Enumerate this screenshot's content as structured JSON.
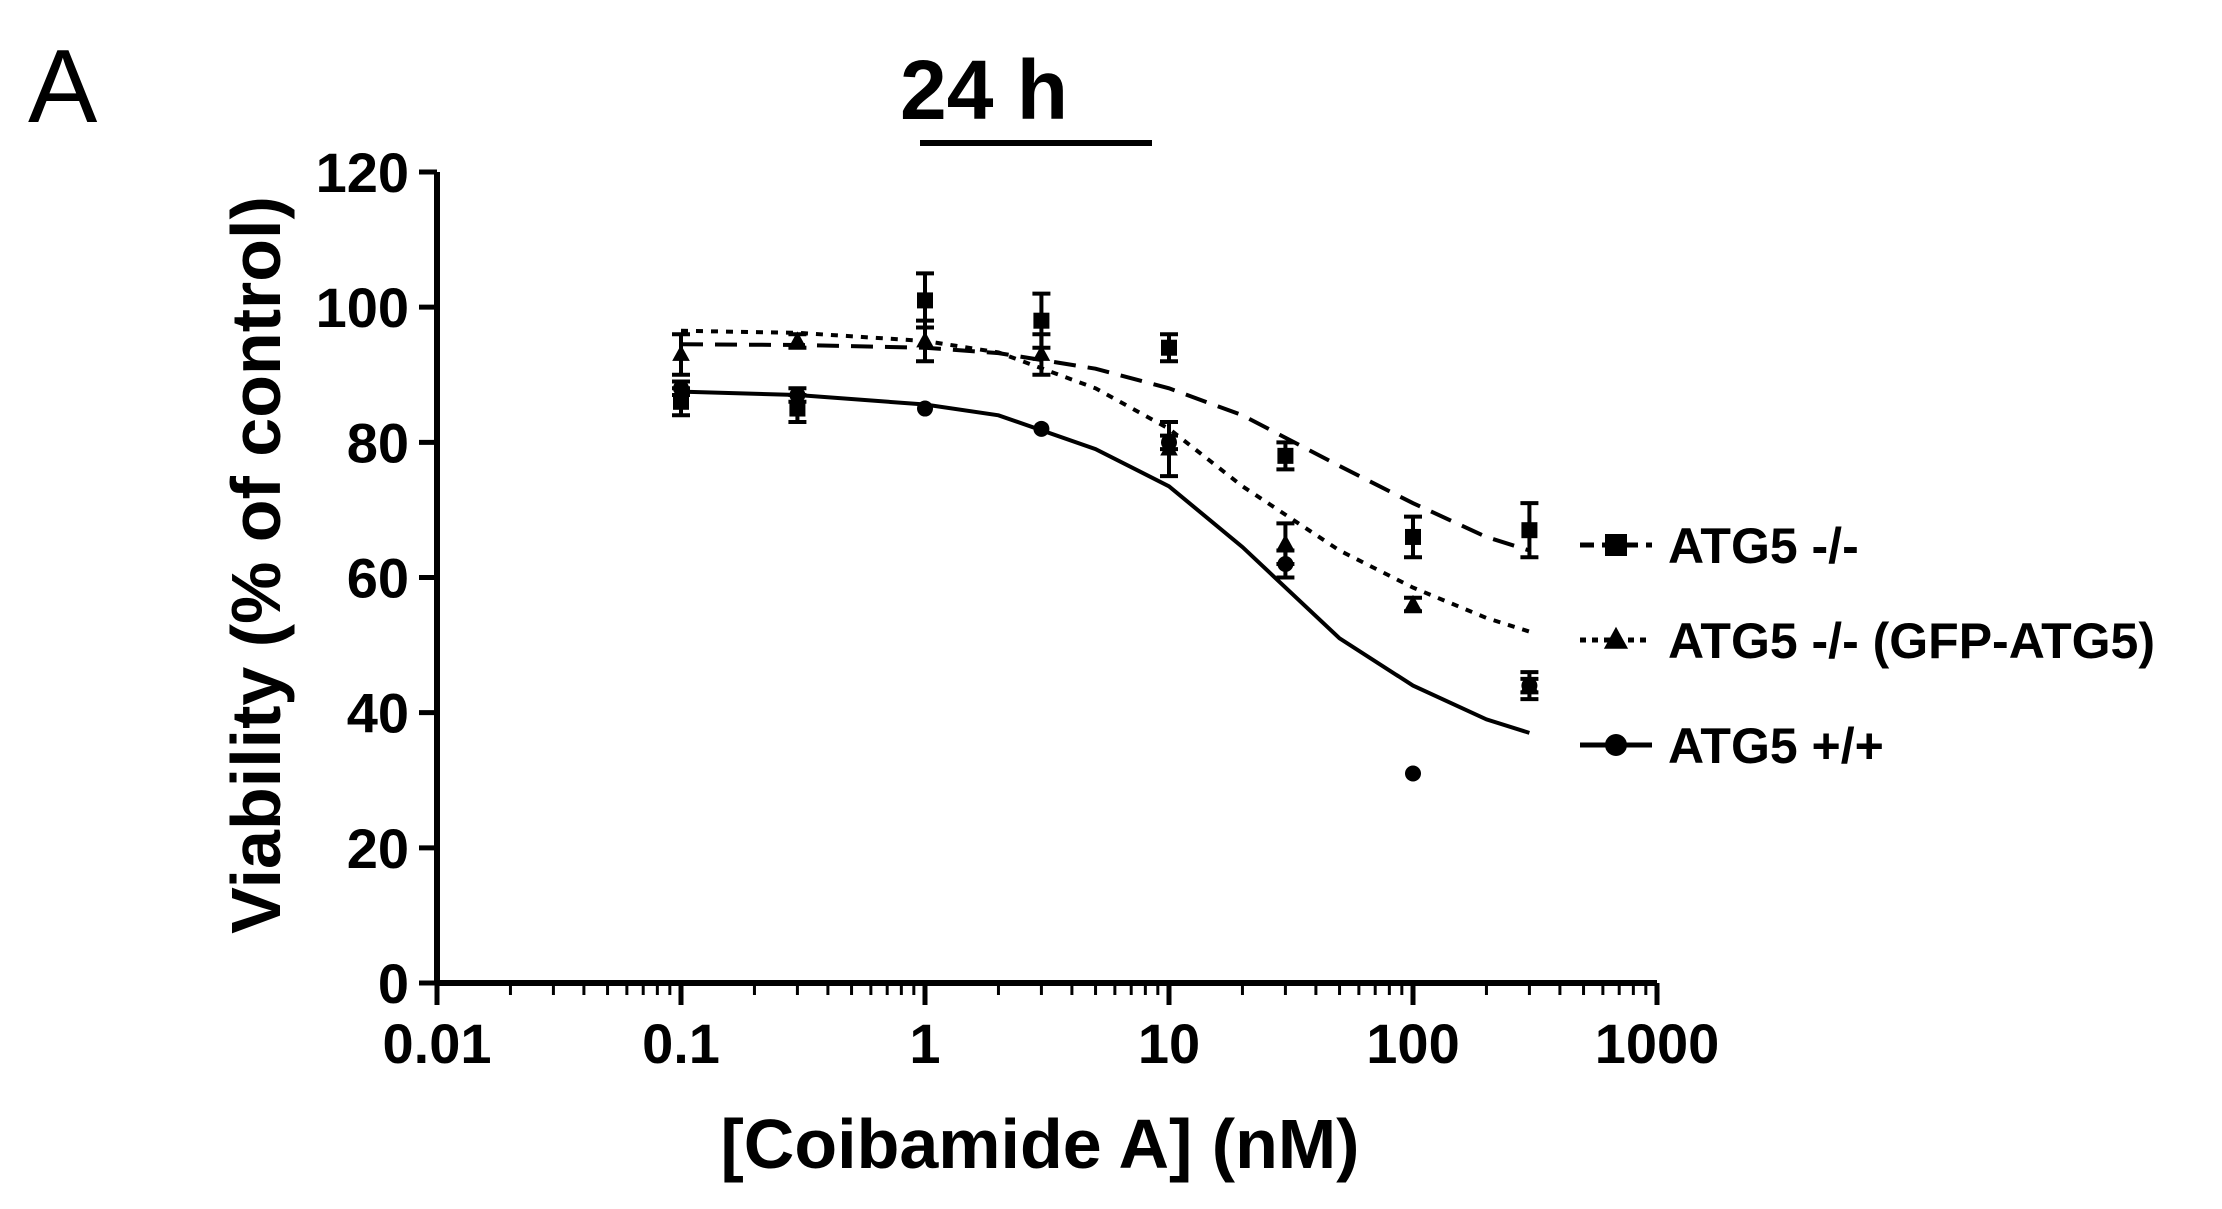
{
  "panel_label": "A",
  "chart_data": {
    "type": "line",
    "title": "24 h",
    "xlabel": "[Coibamide A] (nM)",
    "ylabel": "Viability (% of control)",
    "xscale": "log",
    "xlim": [
      0.01,
      1000
    ],
    "ylim": [
      0,
      120
    ],
    "xticks": [
      0.01,
      0.1,
      1,
      10,
      100,
      1000
    ],
    "xtick_labels": [
      "0.01",
      "0.1",
      "1",
      "10",
      "100",
      "1000"
    ],
    "yticks": [
      0,
      20,
      40,
      60,
      80,
      100,
      120
    ],
    "ytick_labels": [
      "0",
      "20",
      "40",
      "60",
      "80",
      "100",
      "120"
    ],
    "grid": false,
    "legend_position": "right",
    "series": [
      {
        "name": "ATG5 -/-",
        "marker": "square",
        "line_style": "dashed",
        "x": [
          0.1,
          0.3,
          1,
          3,
          10,
          30,
          100,
          300
        ],
        "y": [
          86,
          85,
          101,
          98,
          94,
          78,
          66,
          67
        ],
        "err": [
          2,
          2,
          4,
          4,
          2,
          2,
          3,
          4
        ],
        "fit_x": [
          0.1,
          0.3,
          1,
          2,
          5,
          10,
          20,
          50,
          100,
          200,
          300
        ],
        "fit_y": [
          94.5,
          94.4,
          94.0,
          93.2,
          90.9,
          88.0,
          84.0,
          76.5,
          71.0,
          66.0,
          64.0
        ]
      },
      {
        "name": "ATG5 -/- (GFP-ATG5)",
        "marker": "triangle",
        "line_style": "dotted",
        "x": [
          0.1,
          0.3,
          1,
          3,
          10,
          30,
          100,
          300
        ],
        "y": [
          93,
          95,
          95,
          93,
          79,
          65,
          56,
          44
        ],
        "err": [
          3,
          1,
          3,
          3,
          4,
          3,
          1,
          2
        ],
        "fit_x": [
          0.1,
          0.3,
          1,
          2,
          5,
          10,
          20,
          50,
          100,
          200,
          300
        ],
        "fit_y": [
          96.5,
          96.2,
          95.0,
          93.3,
          88.0,
          82.0,
          73.5,
          64.0,
          58.5,
          54.0,
          52.0
        ]
      },
      {
        "name": "ATG5 +/+",
        "marker": "circle",
        "line_style": "solid",
        "x": [
          0.1,
          0.3,
          1,
          3,
          10,
          30,
          100,
          300
        ],
        "y": [
          88,
          87,
          85,
          82,
          80,
          62,
          31,
          44
        ],
        "err": [
          1,
          1,
          0,
          0,
          1,
          2,
          0,
          1
        ],
        "fit_x": [
          0.1,
          0.3,
          1,
          2,
          5,
          10,
          20,
          50,
          100,
          200,
          300
        ],
        "fit_y": [
          87.5,
          87.0,
          85.6,
          84.0,
          79.0,
          73.5,
          64.5,
          51.0,
          44.0,
          39.0,
          37.0
        ]
      }
    ]
  }
}
